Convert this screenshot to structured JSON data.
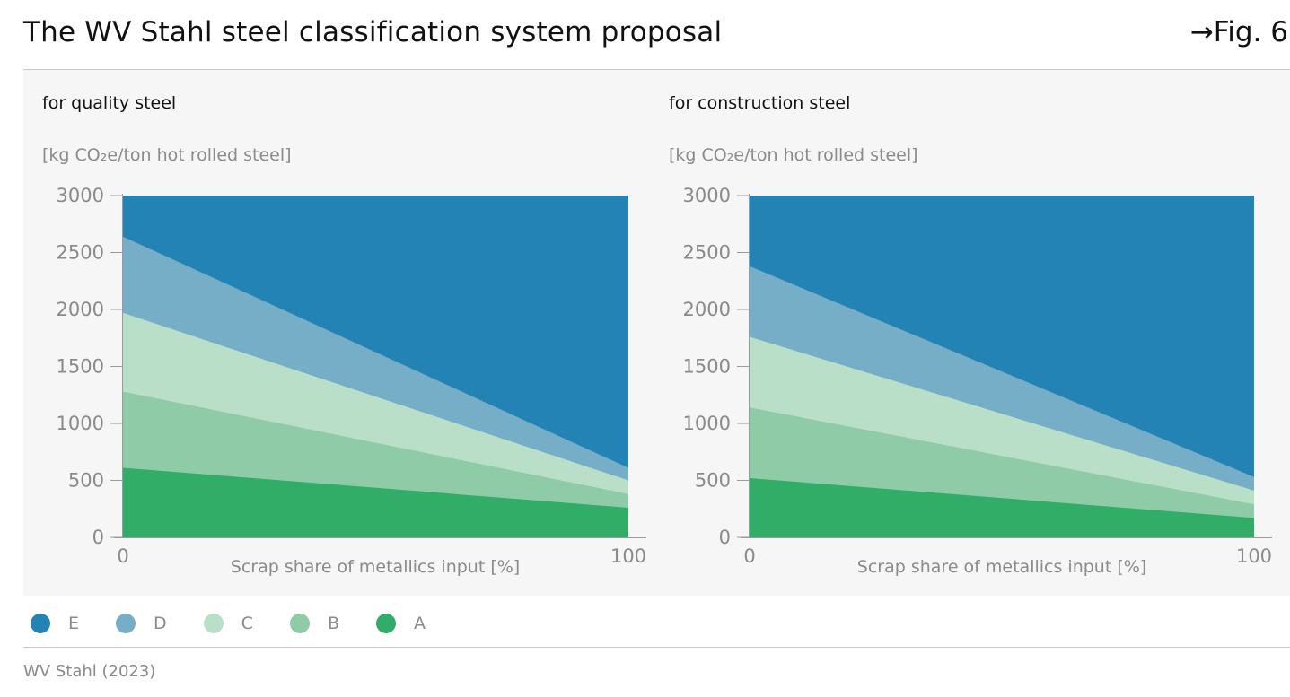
{
  "header": {
    "title": "The WV Stahl steel classification system proposal",
    "fig_ref": "→Fig. 6"
  },
  "legend": [
    {
      "label": "E",
      "color": "#2383b4"
    },
    {
      "label": "D",
      "color": "#75aec6"
    },
    {
      "label": "C",
      "color": "#badfc9"
    },
    {
      "label": "B",
      "color": "#90cba8"
    },
    {
      "label": "A",
      "color": "#31ad67"
    }
  ],
  "source": "WV Stahl (2023)",
  "chart_data": [
    {
      "type": "area",
      "stacked": true,
      "title": "for quality steel",
      "ylabel": "[kg CO₂e/ton hot rolled steel]",
      "xlabel": "Scrap share of metallics input [%]",
      "x": [
        0,
        100
      ],
      "xticks": [
        "0",
        "100"
      ],
      "ylim": [
        0,
        3000
      ],
      "yticks": [
        "0",
        "500",
        "1000",
        "1500",
        "2000",
        "2500",
        "3000"
      ],
      "grid": false,
      "series": [
        {
          "name": "A",
          "color": "#31ad67",
          "values": [
            610,
            260
          ]
        },
        {
          "name": "B",
          "color": "#90cba8",
          "values": [
            1280,
            380
          ]
        },
        {
          "name": "C",
          "color": "#badfc9",
          "values": [
            1970,
            500
          ]
        },
        {
          "name": "D",
          "color": "#75aec6",
          "values": [
            2640,
            610
          ]
        },
        {
          "name": "E",
          "color": "#2383b4",
          "values": [
            3000,
            3000
          ]
        }
      ]
    },
    {
      "type": "area",
      "stacked": true,
      "title": "for construction steel",
      "ylabel": "[kg CO₂e/ton hot rolled steel]",
      "xlabel": "Scrap share of metallics input [%]",
      "x": [
        0,
        100
      ],
      "xticks": [
        "0",
        "100"
      ],
      "ylim": [
        0,
        3000
      ],
      "yticks": [
        "0",
        "500",
        "1000",
        "1500",
        "2000",
        "2500",
        "3000"
      ],
      "grid": false,
      "series": [
        {
          "name": "A",
          "color": "#31ad67",
          "values": [
            520,
            170
          ]
        },
        {
          "name": "B",
          "color": "#90cba8",
          "values": [
            1140,
            290
          ]
        },
        {
          "name": "C",
          "color": "#badfc9",
          "values": [
            1760,
            410
          ]
        },
        {
          "name": "D",
          "color": "#75aec6",
          "values": [
            2380,
            530
          ]
        },
        {
          "name": "E",
          "color": "#2383b4",
          "values": [
            3000,
            3000
          ]
        }
      ]
    }
  ]
}
